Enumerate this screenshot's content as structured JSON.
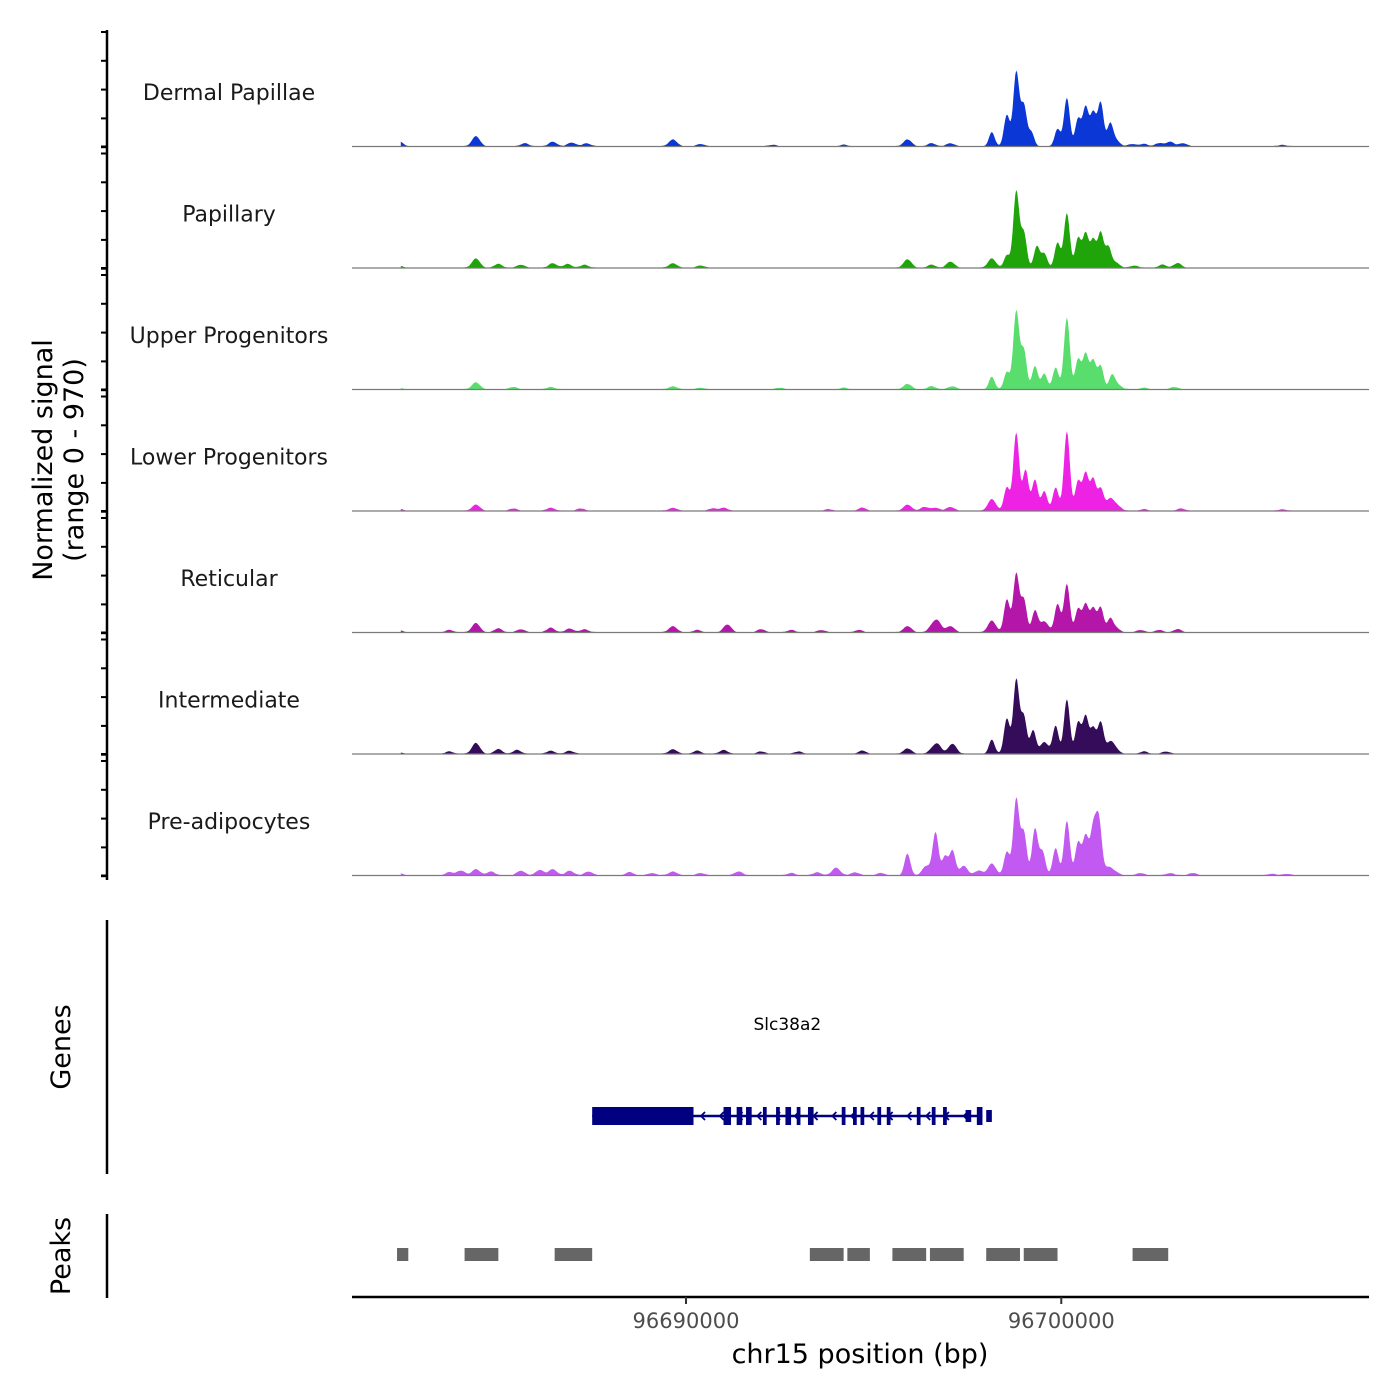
{
  "chart_data": {
    "type": "area",
    "title": "",
    "ylabel_line1": "Normalized signal",
    "ylabel_line2": "(range 0 - 970)",
    "y_range": [
      0,
      970
    ],
    "xlabel": "chr15 position (bp)",
    "xlim": [
      96681100,
      96708200
    ],
    "x_ticks": [
      96690000,
      96700000
    ],
    "x_tick_labels": [
      "96690000",
      "96700000"
    ],
    "tracks": [
      {
        "name": "Dermal Papillae",
        "color": "#0b37d6",
        "peaks": [
          [
            96682350,
            0.07
          ],
          [
            96684400,
            0.13
          ],
          [
            96685700,
            0.04
          ],
          [
            96686450,
            0.06
          ],
          [
            96686950,
            0.05
          ],
          [
            96687350,
            0.04
          ],
          [
            96689650,
            0.09
          ],
          [
            96690400,
            0.03
          ],
          [
            96692300,
            0.02
          ],
          [
            96694200,
            0.02
          ],
          [
            96695900,
            0.09
          ],
          [
            96696550,
            0.04
          ],
          [
            96697050,
            0.04
          ],
          [
            96698150,
            0.18
          ],
          [
            96698550,
            0.4
          ],
          [
            96698800,
            0.95
          ],
          [
            96699000,
            0.52
          ],
          [
            96699200,
            0.18
          ],
          [
            96699900,
            0.22
          ],
          [
            96700150,
            0.62
          ],
          [
            96700450,
            0.35
          ],
          [
            96700650,
            0.5
          ],
          [
            96700850,
            0.42
          ],
          [
            96701050,
            0.56
          ],
          [
            96701300,
            0.27
          ],
          [
            96701450,
            0.08
          ],
          [
            96701900,
            0.03
          ],
          [
            96702200,
            0.03
          ],
          [
            96702600,
            0.04
          ],
          [
            96702900,
            0.06
          ],
          [
            96703250,
            0.04
          ],
          [
            96705900,
            0.02
          ]
        ]
      },
      {
        "name": "Papillary",
        "color": "#1fa50a",
        "peaks": [
          [
            96682350,
            0.03
          ],
          [
            96684400,
            0.12
          ],
          [
            96685000,
            0.05
          ],
          [
            96685600,
            0.04
          ],
          [
            96686450,
            0.06
          ],
          [
            96686850,
            0.05
          ],
          [
            96687300,
            0.04
          ],
          [
            96689650,
            0.06
          ],
          [
            96690400,
            0.03
          ],
          [
            96695900,
            0.11
          ],
          [
            96696550,
            0.04
          ],
          [
            96697050,
            0.08
          ],
          [
            96698150,
            0.12
          ],
          [
            96698550,
            0.16
          ],
          [
            96698800,
            0.98
          ],
          [
            96699000,
            0.45
          ],
          [
            96699350,
            0.28
          ],
          [
            96699550,
            0.18
          ],
          [
            96699900,
            0.32
          ],
          [
            96700150,
            0.7
          ],
          [
            96700450,
            0.38
          ],
          [
            96700650,
            0.44
          ],
          [
            96700850,
            0.35
          ],
          [
            96701050,
            0.45
          ],
          [
            96701250,
            0.26
          ],
          [
            96701450,
            0.07
          ],
          [
            96701950,
            0.03
          ],
          [
            96702700,
            0.04
          ],
          [
            96703100,
            0.06
          ]
        ]
      },
      {
        "name": "Upper Progenitors",
        "color": "#59de6d",
        "peaks": [
          [
            96682350,
            0.02
          ],
          [
            96684400,
            0.09
          ],
          [
            96685400,
            0.03
          ],
          [
            96686400,
            0.03
          ],
          [
            96689650,
            0.04
          ],
          [
            96690400,
            0.02
          ],
          [
            96692500,
            0.02
          ],
          [
            96694200,
            0.02
          ],
          [
            96695900,
            0.07
          ],
          [
            96696550,
            0.04
          ],
          [
            96697100,
            0.04
          ],
          [
            96698150,
            0.16
          ],
          [
            96698550,
            0.22
          ],
          [
            96698800,
            1.0
          ],
          [
            96699000,
            0.5
          ],
          [
            96699300,
            0.3
          ],
          [
            96699550,
            0.2
          ],
          [
            96699850,
            0.28
          ],
          [
            96700150,
            0.92
          ],
          [
            96700450,
            0.38
          ],
          [
            96700650,
            0.45
          ],
          [
            96700850,
            0.36
          ],
          [
            96701050,
            0.3
          ],
          [
            96701350,
            0.17
          ],
          [
            96701500,
            0.06
          ],
          [
            96702200,
            0.02
          ],
          [
            96703000,
            0.03
          ]
        ]
      },
      {
        "name": "Lower Progenitors",
        "color": "#ee22e5",
        "peaks": [
          [
            96682350,
            0.03
          ],
          [
            96684400,
            0.08
          ],
          [
            96685400,
            0.03
          ],
          [
            96686400,
            0.04
          ],
          [
            96687200,
            0.03
          ],
          [
            96689650,
            0.04
          ],
          [
            96690700,
            0.03
          ],
          [
            96691000,
            0.04
          ],
          [
            96693800,
            0.02
          ],
          [
            96694700,
            0.04
          ],
          [
            96695900,
            0.08
          ],
          [
            96696350,
            0.05
          ],
          [
            96696650,
            0.04
          ],
          [
            96697050,
            0.05
          ],
          [
            96698150,
            0.15
          ],
          [
            96698550,
            0.3
          ],
          [
            96698800,
            1.0
          ],
          [
            96699050,
            0.52
          ],
          [
            96699300,
            0.4
          ],
          [
            96699550,
            0.25
          ],
          [
            96699850,
            0.3
          ],
          [
            96700150,
            1.02
          ],
          [
            96700450,
            0.38
          ],
          [
            96700650,
            0.48
          ],
          [
            96700850,
            0.4
          ],
          [
            96701050,
            0.28
          ],
          [
            96701300,
            0.15
          ],
          [
            96701500,
            0.06
          ],
          [
            96702200,
            0.02
          ],
          [
            96703200,
            0.03
          ],
          [
            96705900,
            0.02
          ]
        ]
      },
      {
        "name": "Reticular",
        "color": "#b316a8",
        "peaks": [
          [
            96682350,
            0.03
          ],
          [
            96683700,
            0.03
          ],
          [
            96684400,
            0.12
          ],
          [
            96685000,
            0.05
          ],
          [
            96685600,
            0.04
          ],
          [
            96686400,
            0.06
          ],
          [
            96686900,
            0.05
          ],
          [
            96687300,
            0.04
          ],
          [
            96689650,
            0.08
          ],
          [
            96690300,
            0.03
          ],
          [
            96691100,
            0.1
          ],
          [
            96692000,
            0.04
          ],
          [
            96692800,
            0.03
          ],
          [
            96693600,
            0.03
          ],
          [
            96694600,
            0.03
          ],
          [
            96695900,
            0.08
          ],
          [
            96696550,
            0.06
          ],
          [
            96696700,
            0.14
          ],
          [
            96697050,
            0.08
          ],
          [
            96698150,
            0.15
          ],
          [
            96698550,
            0.42
          ],
          [
            96698800,
            0.75
          ],
          [
            96699000,
            0.42
          ],
          [
            96699300,
            0.28
          ],
          [
            96699550,
            0.14
          ],
          [
            96699900,
            0.36
          ],
          [
            96700150,
            0.62
          ],
          [
            96700450,
            0.3
          ],
          [
            96700650,
            0.36
          ],
          [
            96700850,
            0.3
          ],
          [
            96701050,
            0.32
          ],
          [
            96701300,
            0.16
          ],
          [
            96701450,
            0.06
          ],
          [
            96702100,
            0.03
          ],
          [
            96702600,
            0.03
          ],
          [
            96703100,
            0.04
          ]
        ]
      },
      {
        "name": "Intermediate",
        "color": "#350c5a",
        "peaks": [
          [
            96682350,
            0.02
          ],
          [
            96683700,
            0.03
          ],
          [
            96684400,
            0.14
          ],
          [
            96685000,
            0.06
          ],
          [
            96685500,
            0.05
          ],
          [
            96686400,
            0.04
          ],
          [
            96686900,
            0.04
          ],
          [
            96689650,
            0.06
          ],
          [
            96690300,
            0.04
          ],
          [
            96691000,
            0.05
          ],
          [
            96692000,
            0.03
          ],
          [
            96693000,
            0.03
          ],
          [
            96694700,
            0.04
          ],
          [
            96695900,
            0.07
          ],
          [
            96696550,
            0.04
          ],
          [
            96696700,
            0.12
          ],
          [
            96697100,
            0.13
          ],
          [
            96698150,
            0.18
          ],
          [
            96698550,
            0.45
          ],
          [
            96698800,
            0.95
          ],
          [
            96699000,
            0.48
          ],
          [
            96699250,
            0.3
          ],
          [
            96699550,
            0.15
          ],
          [
            96699850,
            0.36
          ],
          [
            96700150,
            0.7
          ],
          [
            96700450,
            0.4
          ],
          [
            96700650,
            0.48
          ],
          [
            96700850,
            0.32
          ],
          [
            96701050,
            0.4
          ],
          [
            96701300,
            0.14
          ],
          [
            96701450,
            0.05
          ],
          [
            96702200,
            0.03
          ],
          [
            96702800,
            0.03
          ]
        ]
      },
      {
        "name": "Pre-adipocytes",
        "color": "#c25af2",
        "peaks": [
          [
            96682350,
            0.03
          ],
          [
            96683700,
            0.04
          ],
          [
            96684000,
            0.06
          ],
          [
            96684400,
            0.08
          ],
          [
            96684800,
            0.05
          ],
          [
            96685600,
            0.06
          ],
          [
            96686100,
            0.07
          ],
          [
            96686450,
            0.08
          ],
          [
            96686900,
            0.06
          ],
          [
            96687400,
            0.05
          ],
          [
            96688500,
            0.04
          ],
          [
            96689100,
            0.03
          ],
          [
            96689650,
            0.05
          ],
          [
            96690400,
            0.03
          ],
          [
            96691400,
            0.05
          ],
          [
            96692800,
            0.03
          ],
          [
            96693500,
            0.04
          ],
          [
            96694000,
            0.1
          ],
          [
            96694500,
            0.04
          ],
          [
            96695200,
            0.03
          ],
          [
            96695900,
            0.28
          ],
          [
            96696400,
            0.12
          ],
          [
            96696650,
            0.55
          ],
          [
            96696900,
            0.24
          ],
          [
            96697100,
            0.32
          ],
          [
            96697400,
            0.12
          ],
          [
            96697800,
            0.06
          ],
          [
            96698150,
            0.15
          ],
          [
            96698550,
            0.3
          ],
          [
            96698800,
            0.98
          ],
          [
            96699000,
            0.55
          ],
          [
            96699300,
            0.6
          ],
          [
            96699500,
            0.3
          ],
          [
            96699850,
            0.35
          ],
          [
            96700150,
            0.7
          ],
          [
            96700450,
            0.42
          ],
          [
            96700650,
            0.5
          ],
          [
            96700850,
            0.58
          ],
          [
            96701000,
            0.7
          ],
          [
            96701250,
            0.1
          ],
          [
            96701450,
            0.04
          ],
          [
            96702100,
            0.03
          ],
          [
            96702900,
            0.03
          ],
          [
            96703500,
            0.03
          ],
          [
            96705600,
            0.02
          ],
          [
            96706000,
            0.02
          ]
        ]
      }
    ],
    "genes": [
      {
        "name": "Slc38a2",
        "strand": "-",
        "color": "#000080",
        "start": 96687500,
        "end": 96697900,
        "utr3": [
          96687500,
          96690200
        ],
        "exons": [
          [
            96691000,
            96691200
          ],
          [
            96691350,
            96691500
          ],
          [
            96691600,
            96691750
          ],
          [
            96692050,
            96692150
          ],
          [
            96692400,
            96692500
          ],
          [
            96692650,
            96692800
          ],
          [
            96692950,
            96693050
          ],
          [
            96693250,
            96693400
          ],
          [
            96694150,
            96694250
          ],
          [
            96694450,
            96694550
          ],
          [
            96694650,
            96694750
          ],
          [
            96695100,
            96695200
          ],
          [
            96695350,
            96695450
          ],
          [
            96696150,
            96696250
          ],
          [
            96696550,
            96696650
          ],
          [
            96696850,
            96696950
          ],
          [
            96697750,
            96697900
          ]
        ],
        "utr5": [
          [
            96697450,
            96697600
          ],
          [
            96698000,
            96698150
          ]
        ]
      }
    ],
    "peaks_track_label": "Peaks",
    "genes_track_label": "Genes",
    "called_peaks": [
      [
        96682300,
        96682600
      ],
      [
        96684100,
        96685000
      ],
      [
        96686500,
        96687500
      ],
      [
        96693300,
        96694200
      ],
      [
        96694300,
        96694900
      ],
      [
        96695500,
        96696400
      ],
      [
        96696500,
        96697400
      ],
      [
        96698000,
        96698900
      ],
      [
        96699000,
        96699900
      ],
      [
        96701900,
        96702850
      ]
    ]
  }
}
